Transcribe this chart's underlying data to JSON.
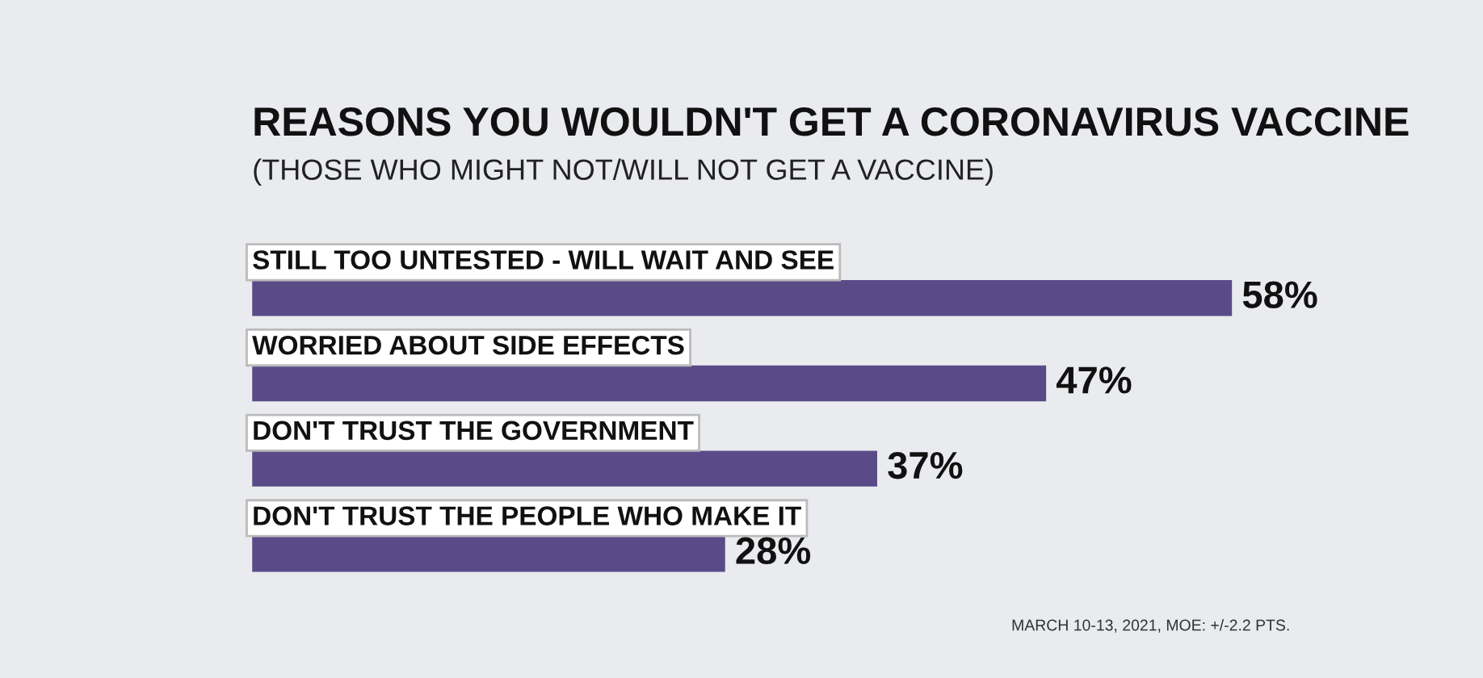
{
  "chart_data": {
    "type": "bar",
    "orientation": "horizontal",
    "title": "REASONS YOU WOULDN'T GET A CORONAVIRUS VACCINE",
    "subtitle": "(THOSE WHO MIGHT NOT/WILL NOT GET A VACCINE)",
    "categories": [
      "STILL TOO UNTESTED - WILL WAIT AND SEE",
      "WORRIED ABOUT SIDE EFFECTS",
      "DON'T TRUST THE GOVERNMENT",
      "DON'T TRUST THE PEOPLE WHO MAKE IT"
    ],
    "values": [
      58,
      47,
      37,
      28
    ],
    "color": "#5a4b88",
    "value_labels": [
      "58%",
      "47%",
      "37%",
      "28%"
    ],
    "annotations": [
      "MARCH 10-13, 2021, MOE: +/-2.2 PTS."
    ],
    "grid": false
  }
}
